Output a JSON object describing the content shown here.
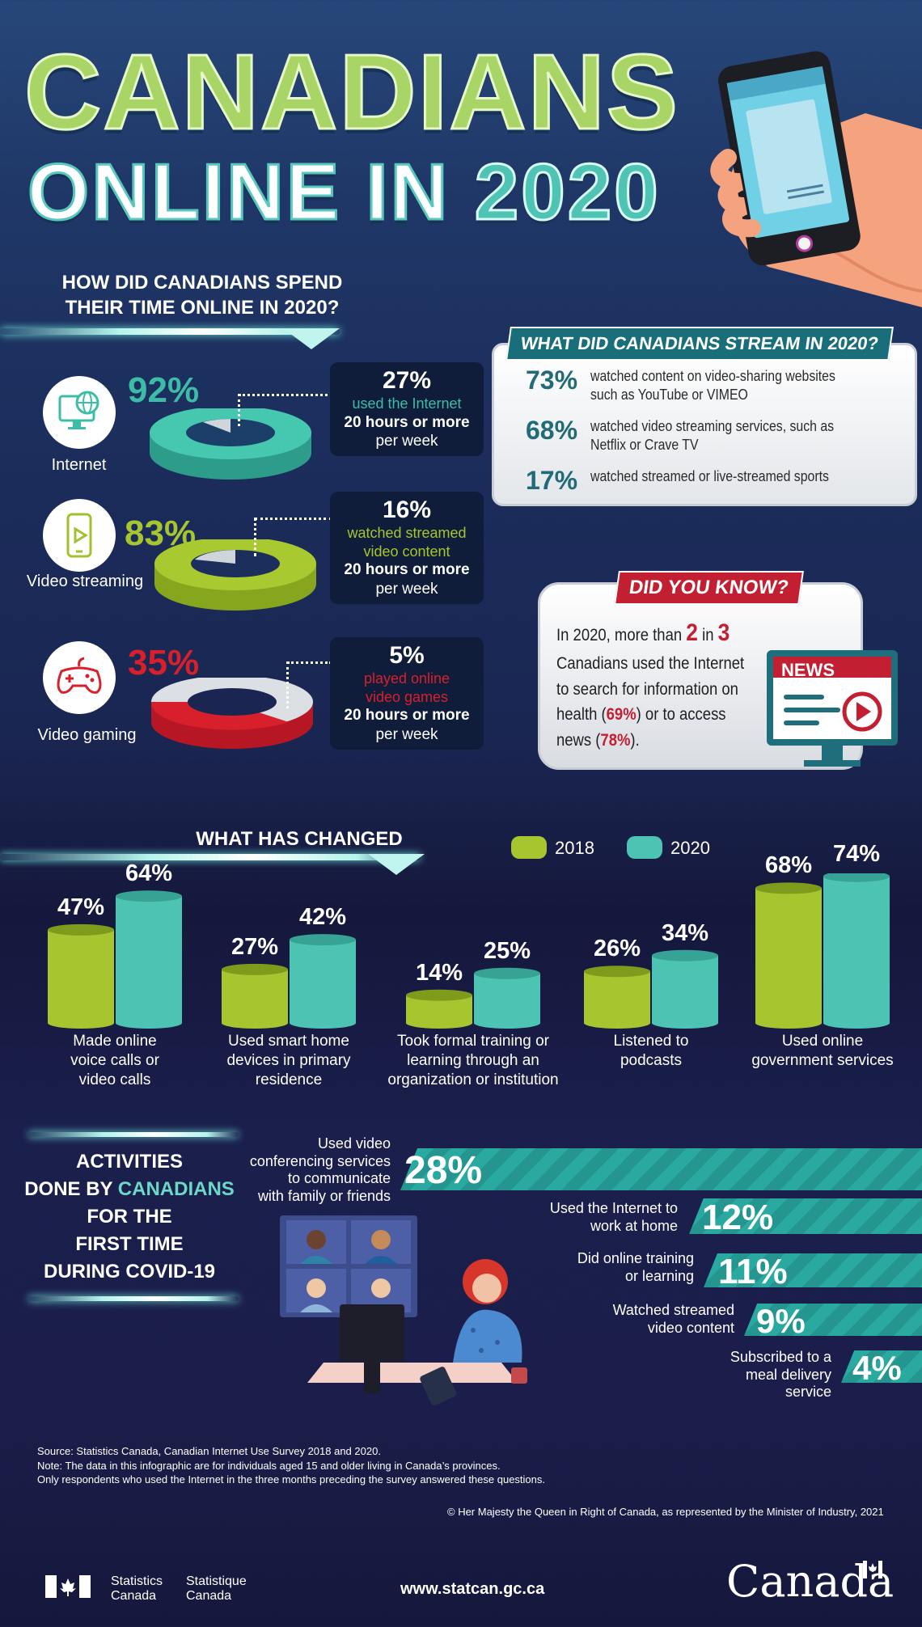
{
  "title": {
    "line1": "CANADIANS",
    "line2_a": "ONLINE IN",
    "line2_b": "2020"
  },
  "time_online": {
    "heading_1": "HOW DID CANADIANS SPEND",
    "heading_2": "THEIR TIME ONLINE IN 2020?",
    "items": [
      {
        "label": "Internet",
        "pct": "92%",
        "value": 92,
        "color": "#3dbda8",
        "icon": "monitor-globe-icon",
        "box_pct": "27%",
        "box_text": "used the Internet",
        "box_hours": "20 hours or more",
        "box_week": "per week"
      },
      {
        "label": "Video streaming",
        "pct": "83%",
        "value": 83,
        "color": "#9fc22d",
        "icon": "phone-play-icon",
        "box_pct": "16%",
        "box_text_1": "watched streamed",
        "box_text_2": "video content",
        "box_hours": "20 hours or more",
        "box_week": "per week"
      },
      {
        "label": "Video gaming",
        "pct": "35%",
        "value": 35,
        "color": "#d8202c",
        "icon": "gamepad-icon",
        "box_pct": "5%",
        "box_text_1": "played online",
        "box_text_2": "video games",
        "box_hours": "20 hours or more",
        "box_week": "per week"
      }
    ]
  },
  "stream": {
    "heading": "WHAT DID CANADIANS STREAM IN 2020?",
    "rows": [
      {
        "pct": "73%",
        "text": "watched content on video-sharing websites such as YouTube or VIMEO"
      },
      {
        "pct": "68%",
        "text": "watched video streaming services, such as Netflix or Crave TV"
      },
      {
        "pct": "17%",
        "text": "watched streamed or live-streamed sports"
      }
    ]
  },
  "dyk": {
    "heading": "DID YOU KNOW?",
    "t1": "In 2020, more than",
    "n1": "2",
    "t2": "in",
    "n2": "3",
    "t3": "Canadians used the Internet to search for information on health (",
    "p1": "69%",
    "t4": ") or to access news (",
    "p2": "78%",
    "t5": ").",
    "news_label": "NEWS"
  },
  "chart_data": {
    "type": "bar",
    "title": "WHAT HAS CHANGED",
    "categories": [
      "Made online voice calls or video calls",
      "Used smart home devices in primary residence",
      "Took formal training or learning through an organization or institution",
      "Listened to podcasts",
      "Used online government services"
    ],
    "category_lines": [
      [
        "Made online",
        "voice calls or",
        "video calls"
      ],
      [
        "Used smart home",
        "devices in primary",
        "residence"
      ],
      [
        "Took formal training or",
        "learning through an",
        "organization or institution"
      ],
      [
        "Listened to",
        "podcasts"
      ],
      [
        "Used online",
        "government services"
      ]
    ],
    "series": [
      {
        "name": "2018",
        "values": [
          47,
          27,
          14,
          26,
          68
        ],
        "color": "#a6c52e"
      },
      {
        "name": "2020",
        "values": [
          64,
          42,
          25,
          34,
          74
        ],
        "color": "#4dc3b3"
      }
    ],
    "value_suffix": "%",
    "ylim": [
      0,
      80
    ],
    "legend": "top-right"
  },
  "activities": {
    "heading_1": "ACTIVITIES",
    "heading_2a": "DONE BY",
    "heading_2b": "CANADIANS",
    "heading_3": "FOR THE",
    "heading_4": "FIRST TIME",
    "heading_5": "DURING COVID-19",
    "items": [
      {
        "lines": [
          "Used video",
          "conferencing services",
          "to communicate",
          "with family or friends"
        ],
        "pct": "28%",
        "value": 28
      },
      {
        "lines": [
          "Used the Internet to",
          "work at home"
        ],
        "pct": "12%",
        "value": 12
      },
      {
        "lines": [
          "Did online training",
          "or learning"
        ],
        "pct": "11%",
        "value": 11
      },
      {
        "lines": [
          "Watched streamed",
          "video content"
        ],
        "pct": "9%",
        "value": 9
      },
      {
        "lines": [
          "Subscribed to a",
          "meal delivery",
          "service"
        ],
        "pct": "4%",
        "value": 4
      }
    ]
  },
  "footer": {
    "source": "Source: Statistics Canada, Canadian Internet Use Survey 2018 and 2020.",
    "note": "Note: The data in this infographic are for individuals aged 15 and older living in Canada’s provinces.",
    "note2": "Only respondents who used the Internet in the three months preceding the survey answered these questions.",
    "copyright": "© Her Majesty the Queen in Right of Canada, as represented by the Minister of Industry, 2021",
    "stat_en_1": "Statistics",
    "stat_en_2": "Canada",
    "stat_fr_1": "Statistique",
    "stat_fr_2": "Canada",
    "url": "www.statcan.gc.ca",
    "wordmark": "Canada"
  }
}
